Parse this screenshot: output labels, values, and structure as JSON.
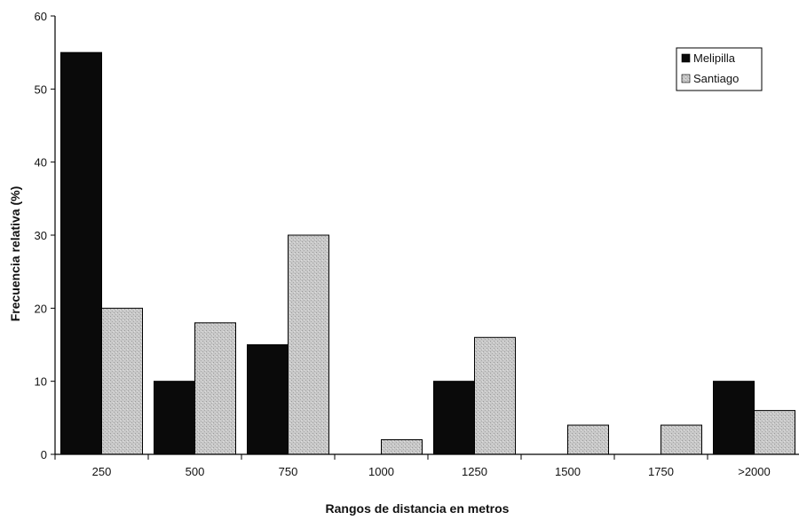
{
  "chart_data": {
    "type": "bar",
    "title": "",
    "xlabel": "Rangos de distancia en metros",
    "ylabel": "Frecuencia relativa (%)",
    "categories": [
      "250",
      "500",
      "750",
      "1000",
      "1250",
      "1500",
      "1750",
      ">2000"
    ],
    "series": [
      {
        "name": "Melipilla",
        "color": "#0a0a0a",
        "values": [
          55,
          10,
          15,
          0,
          10,
          0,
          0,
          10
        ]
      },
      {
        "name": "Santiago",
        "color": "#c9c9c9",
        "values": [
          20,
          18,
          30,
          2,
          16,
          4,
          4,
          6
        ]
      }
    ],
    "ylim": [
      0,
      60
    ],
    "yticks": [
      0,
      10,
      20,
      30,
      40,
      50,
      60
    ],
    "grid": false,
    "legend_position": "top-right"
  }
}
